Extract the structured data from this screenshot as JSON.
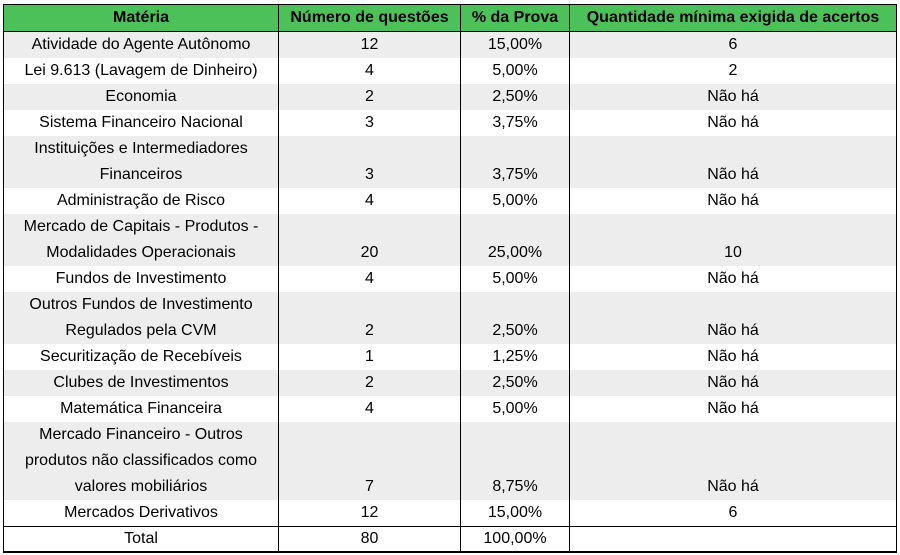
{
  "header": {
    "materia": "Matéria",
    "numero": "Número de questões",
    "percent": "% da Prova",
    "minimo": "Quantidade mínima exigida de acertos"
  },
  "rows": [
    {
      "materia": "Atividade do Agente Autônomo",
      "numero": "12",
      "percent": "15,00%",
      "minimo": "6"
    },
    {
      "materia": "Lei 9.613 (Lavagem de Dinheiro)",
      "numero": "4",
      "percent": "5,00%",
      "minimo": "2"
    },
    {
      "materia": "Economia",
      "numero": "2",
      "percent": "2,50%",
      "minimo": "Não há"
    },
    {
      "materia": "Sistema Financeiro Nacional",
      "numero": "3",
      "percent": "3,75%",
      "minimo": "Não há"
    },
    {
      "materia": "Instituições e Intermediadores Financeiros",
      "numero": "3",
      "percent": "3,75%",
      "minimo": "Não há"
    },
    {
      "materia": "Administração de Risco",
      "numero": "4",
      "percent": "5,00%",
      "minimo": "Não há"
    },
    {
      "materia": "Mercado de Capitais - Produtos - Modalidades Operacionais",
      "numero": "20",
      "percent": "25,00%",
      "minimo": "10"
    },
    {
      "materia": "Fundos de Investimento",
      "numero": "4",
      "percent": "5,00%",
      "minimo": "Não há"
    },
    {
      "materia": "Outros Fundos de Investimento Regulados pela CVM",
      "numero": "2",
      "percent": "2,50%",
      "minimo": "Não há"
    },
    {
      "materia": "Securitização de Recebíveis",
      "numero": "1",
      "percent": "1,25%",
      "minimo": "Não há"
    },
    {
      "materia": "Clubes de Investimentos",
      "numero": "2",
      "percent": "2,50%",
      "minimo": "Não há"
    },
    {
      "materia": "Matemática Financeira",
      "numero": "4",
      "percent": "5,00%",
      "minimo": "Não há"
    },
    {
      "materia": "Mercado Financeiro - Outros produtos não classificados como valores mobiliários",
      "numero": "7",
      "percent": "8,75%",
      "minimo": "Não há"
    },
    {
      "materia": "Mercados Derivativos",
      "numero": "12",
      "percent": "15,00%",
      "minimo": "6"
    }
  ],
  "total": {
    "label": "Total",
    "numero": "80",
    "percent": "100,00%",
    "minimo": ""
  }
}
